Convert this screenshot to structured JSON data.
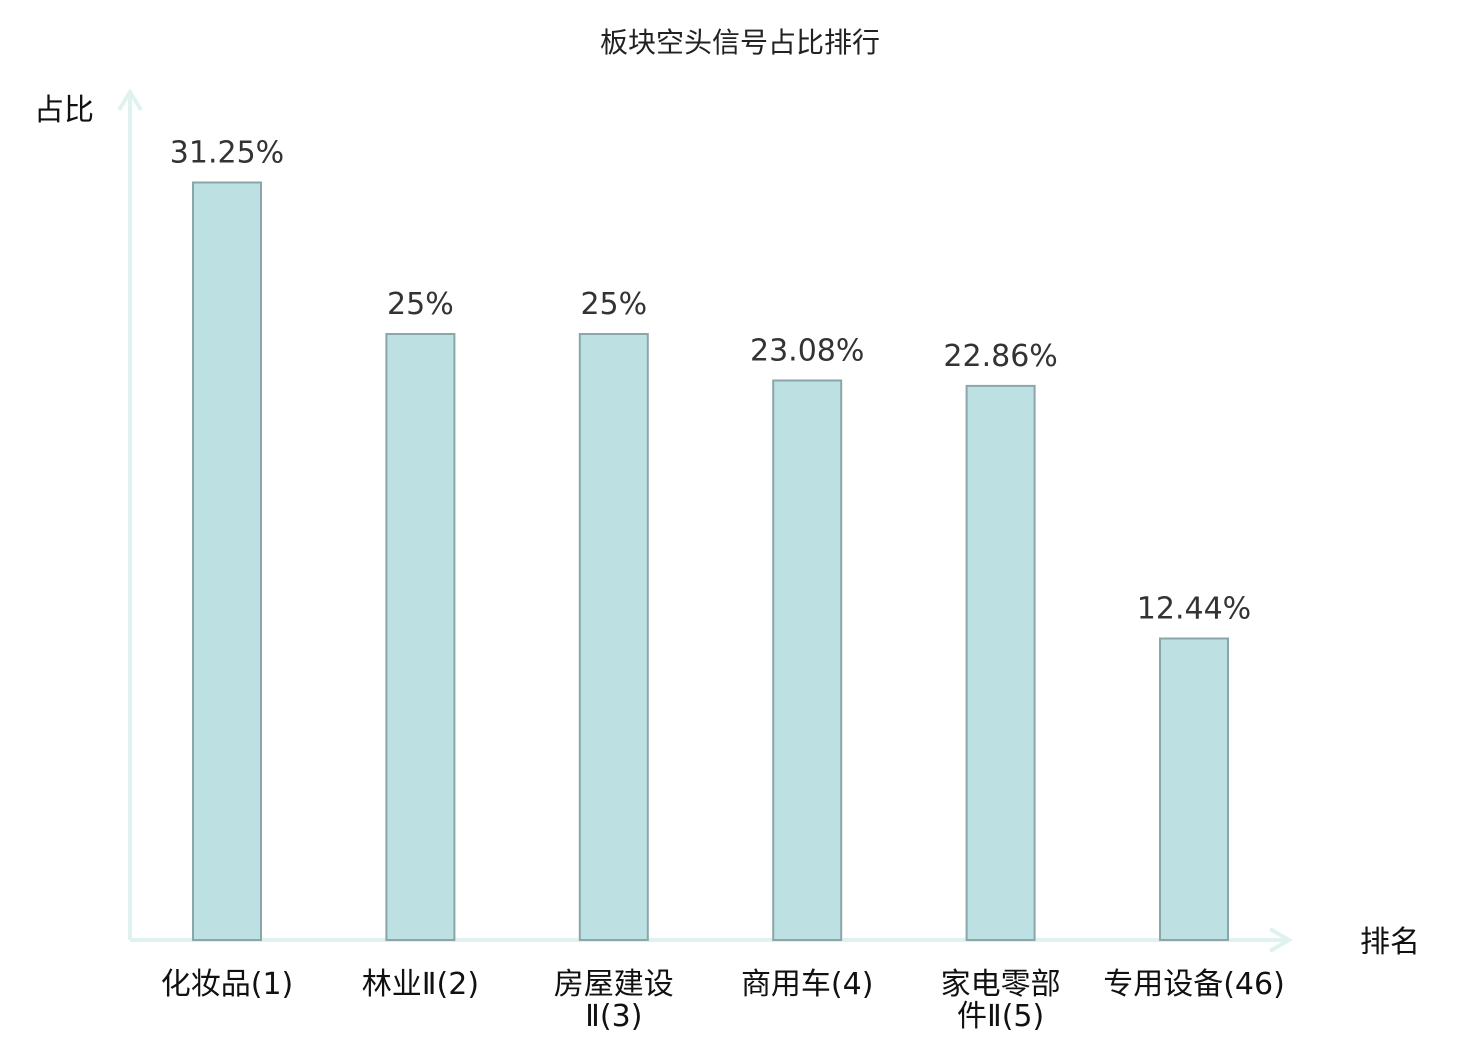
{
  "chart_data": {
    "type": "bar",
    "title": "板块空头信号占比排行",
    "ylabel": "占比",
    "xlabel": "排名",
    "ylim": [
      0,
      35
    ],
    "grid": false,
    "categories": [
      "化妆品(1)",
      "林业Ⅱ(2)",
      "房屋建设Ⅱ(3)",
      "商用车(4)",
      "家电零部件Ⅱ(5)",
      "专用设备(46)"
    ],
    "category_lines": [
      [
        "化妆品(1)"
      ],
      [
        "林业Ⅱ(2)"
      ],
      [
        "房屋建设",
        "Ⅱ(3)"
      ],
      [
        "商用车(4)"
      ],
      [
        "家电零部",
        "件Ⅱ(5)"
      ],
      [
        "专用设备(46)"
      ]
    ],
    "values": [
      31.25,
      25,
      25,
      23.08,
      22.86,
      12.44
    ],
    "value_labels": [
      "31.25%",
      "25%",
      "25%",
      "23.08%",
      "22.86%",
      "12.44%"
    ],
    "highlight_index": 5,
    "colors": {
      "bar_fill": "#bde0e3",
      "bar_stroke": "#8aa6a8",
      "axis": "#e0f2ef",
      "highlight_label": "#e02020",
      "text": "#111111"
    }
  }
}
